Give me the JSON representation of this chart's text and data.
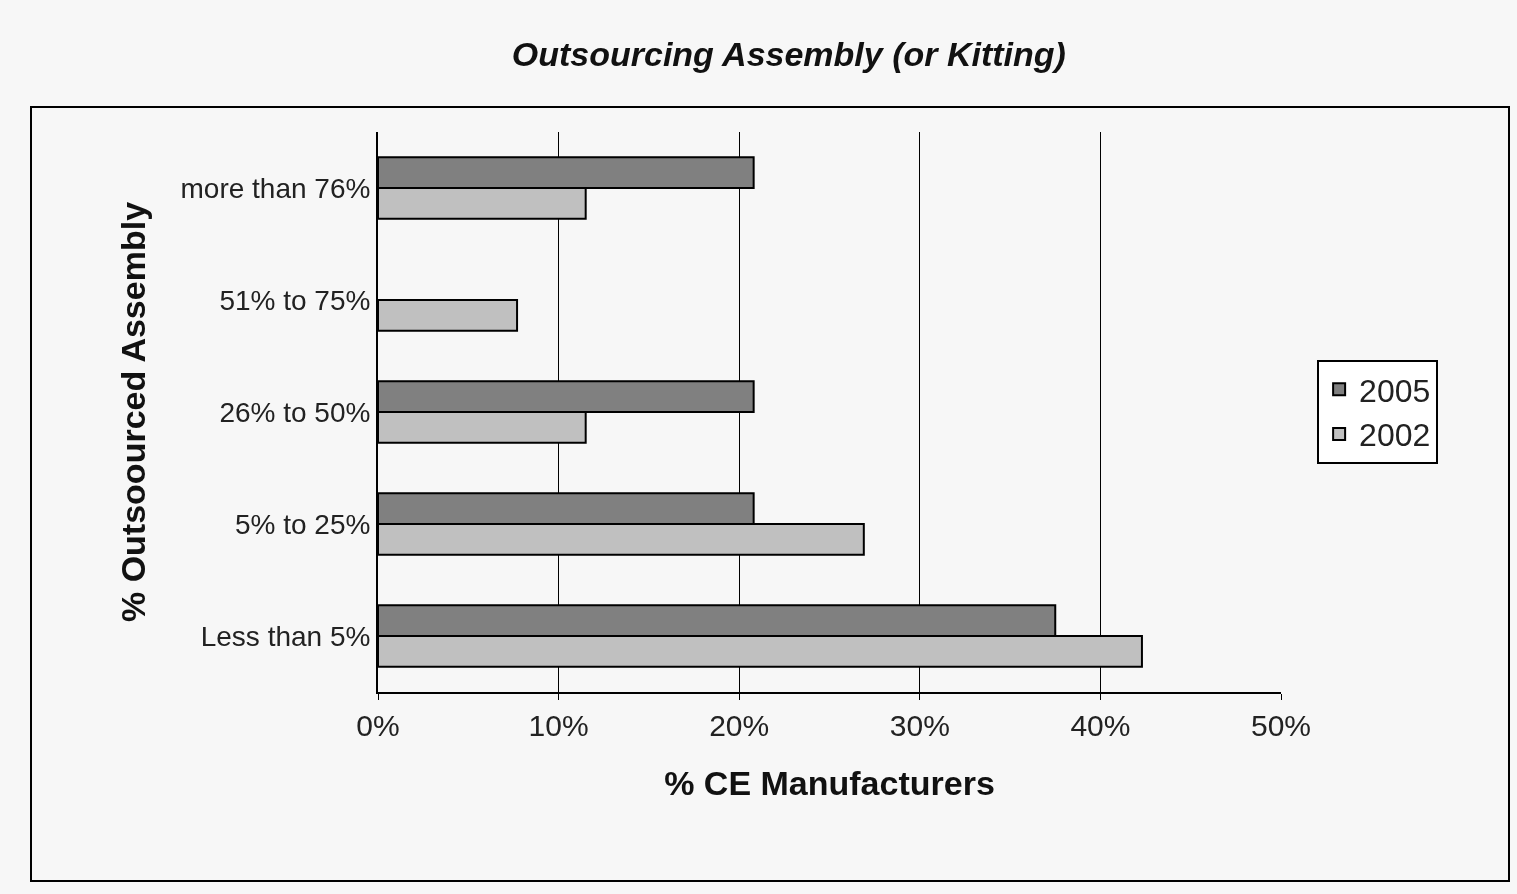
{
  "chart_data": {
    "type": "bar",
    "orientation": "horizontal",
    "title": "Outsourcing Assembly (or Kitting)",
    "xlabel": "% CE Manufacturers",
    "ylabel": "% Outsoourced Assembly",
    "categories": [
      "more than 76%",
      "51% to 75%",
      "26% to 50%",
      "5% to 25%",
      "Less than 5%"
    ],
    "series": [
      {
        "name": "2005",
        "color": "#808080",
        "values": [
          20.8,
          null,
          20.8,
          20.8,
          37.5
        ]
      },
      {
        "name": "2002",
        "color": "#c0c0c0",
        "values": [
          11.5,
          7.7,
          11.5,
          26.9,
          42.3
        ]
      }
    ],
    "xlim": [
      0,
      50
    ],
    "xticks": [
      {
        "value": 0,
        "label": "0%"
      },
      {
        "value": 10,
        "label": "10%"
      },
      {
        "value": 20,
        "label": "20%"
      },
      {
        "value": 30,
        "label": "30%"
      },
      {
        "value": 40,
        "label": "40%"
      },
      {
        "value": 50,
        "label": "50%"
      }
    ],
    "grid": "x",
    "legend": "right"
  }
}
